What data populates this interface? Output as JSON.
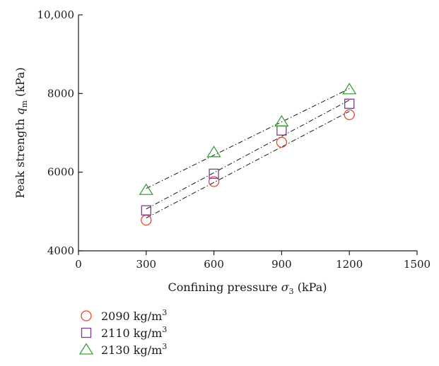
{
  "chart_data": {
    "type": "scatter",
    "xlabel": {
      "main": "Confining pressure ",
      "symbol": "σ",
      "sub": "3",
      "unit": " (kPa)"
    },
    "ylabel": {
      "main": "Peak strength ",
      "symbol": "q",
      "sub": "m",
      "unit": " (kPa)"
    },
    "xlim": [
      0,
      1500
    ],
    "ylim": [
      4000,
      10000
    ],
    "xticks": [
      0,
      300,
      600,
      900,
      1200,
      1500
    ],
    "yticks": [
      4000,
      6000,
      8000,
      10000
    ],
    "xtick_labels": [
      "0",
      "300",
      "600",
      "900",
      "1200",
      "1500"
    ],
    "ytick_labels": [
      "4000",
      "6000",
      "8000",
      "10,000"
    ],
    "grid": false,
    "legend_position": "bottom-left below plot",
    "fit_lines": "dash-dot linear fit per series",
    "series": [
      {
        "name": "2090 kg/m",
        "sup": "3",
        "marker": "circle",
        "color": "#e8452c",
        "x": [
          300,
          600,
          900,
          1200
        ],
        "y": [
          4780,
          5760,
          6760,
          7460
        ]
      },
      {
        "name": "2110 kg/m",
        "sup": "3",
        "marker": "square",
        "color": "#7a3e8e",
        "x": [
          300,
          600,
          900,
          1200
        ],
        "y": [
          5030,
          5960,
          7060,
          7740
        ]
      },
      {
        "name": "2130 kg/m",
        "sup": "3",
        "marker": "triangle",
        "color": "#3aa33a",
        "x": [
          300,
          600,
          900,
          1200
        ],
        "y": [
          5540,
          6500,
          7280,
          8100
        ]
      }
    ]
  }
}
